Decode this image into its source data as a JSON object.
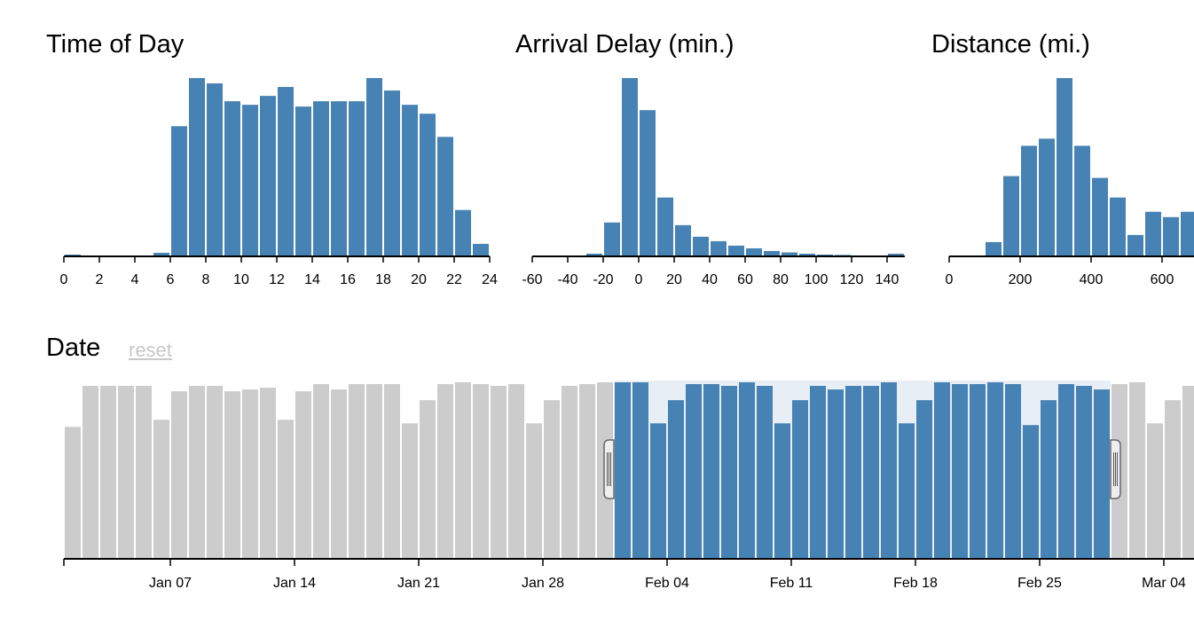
{
  "colors": {
    "bar_selected": "#4682b4",
    "bar_unselected": "#cccccc",
    "brush_fill": "#e8eef6",
    "axis": "#000000",
    "reset": "#c8c8c8"
  },
  "reset_label": "reset",
  "chart_data": [
    {
      "type": "bar",
      "title": "Time of Day",
      "x_start": [
        0,
        1,
        2,
        3,
        4,
        5,
        6,
        7,
        8,
        9,
        10,
        11,
        12,
        13,
        14,
        15,
        16,
        17,
        18,
        19,
        20,
        21,
        22,
        23
      ],
      "bin_width": 1,
      "values": [
        1,
        0,
        0,
        0,
        0,
        2,
        73,
        100,
        97,
        87,
        85,
        90,
        95,
        84,
        87,
        87,
        87,
        100,
        93,
        85,
        80,
        67,
        26,
        7
      ],
      "xlim": [
        0,
        24
      ],
      "ylim": [
        0,
        100
      ],
      "tick_labels": [
        "0",
        "2",
        "4",
        "6",
        "8",
        "10",
        "12",
        "14",
        "16",
        "18",
        "20",
        "22",
        "24"
      ],
      "tick_values": [
        0,
        2,
        4,
        6,
        8,
        10,
        12,
        14,
        16,
        18,
        20,
        22,
        24
      ]
    },
    {
      "type": "bar",
      "title": "Arrival Delay (min.)",
      "x_start": [
        -60,
        -50,
        -40,
        -30,
        -20,
        -10,
        0,
        10,
        20,
        30,
        40,
        50,
        60,
        70,
        80,
        90,
        100,
        110,
        120,
        130,
        140
      ],
      "bin_width": 10,
      "values": [
        0,
        0,
        0,
        1.5,
        19,
        100,
        82,
        33,
        17.5,
        11,
        8.5,
        6,
        4.5,
        3,
        2.2,
        1.5,
        1,
        0.8,
        0.5,
        0.3,
        1.5
      ],
      "xlim": [
        -60,
        150
      ],
      "ylim": [
        0,
        100
      ],
      "tick_labels": [
        "-60",
        "-40",
        "-20",
        "0",
        "20",
        "40",
        "60",
        "80",
        "100",
        "120",
        "140"
      ],
      "tick_values": [
        -60,
        -40,
        -20,
        0,
        20,
        40,
        60,
        80,
        100,
        120,
        140
      ]
    },
    {
      "type": "bar",
      "title": "Distance (mi.)",
      "x_start": [
        0,
        50,
        100,
        150,
        200,
        250,
        300,
        350,
        400,
        450,
        500,
        550,
        600,
        650
      ],
      "bin_width": 50,
      "values": [
        0,
        0,
        8,
        45,
        62,
        66,
        100,
        62,
        44,
        33,
        12,
        25,
        22,
        25
      ],
      "xlim": [
        0,
        690
      ],
      "ylim": [
        0,
        100
      ],
      "tick_labels": [
        "0",
        "200",
        "400",
        "600"
      ],
      "tick_values": [
        0,
        200,
        400,
        600
      ]
    },
    {
      "type": "bar",
      "title": "Date",
      "start_date": "2001-01-01",
      "x": [
        "2001-01-01",
        "2001-01-02",
        "2001-01-03",
        "2001-01-04",
        "2001-01-05",
        "2001-01-06",
        "2001-01-07",
        "2001-01-08",
        "2001-01-09",
        "2001-01-10",
        "2001-01-11",
        "2001-01-12",
        "2001-01-13",
        "2001-01-14",
        "2001-01-15",
        "2001-01-16",
        "2001-01-17",
        "2001-01-18",
        "2001-01-19",
        "2001-01-20",
        "2001-01-21",
        "2001-01-22",
        "2001-01-23",
        "2001-01-24",
        "2001-01-25",
        "2001-01-26",
        "2001-01-27",
        "2001-01-28",
        "2001-01-29",
        "2001-01-30",
        "2001-01-31",
        "2001-02-01",
        "2001-02-02",
        "2001-02-03",
        "2001-02-04",
        "2001-02-05",
        "2001-02-06",
        "2001-02-07",
        "2001-02-08",
        "2001-02-09",
        "2001-02-10",
        "2001-02-11",
        "2001-02-12",
        "2001-02-13",
        "2001-02-14",
        "2001-02-15",
        "2001-02-16",
        "2001-02-17",
        "2001-02-18",
        "2001-02-19",
        "2001-02-20",
        "2001-02-21",
        "2001-02-22",
        "2001-02-23",
        "2001-02-24",
        "2001-02-25",
        "2001-02-26",
        "2001-02-27",
        "2001-02-28",
        "2001-03-01",
        "2001-03-02",
        "2001-03-03",
        "2001-03-04",
        "2001-03-05",
        "2001-03-06"
      ],
      "values": [
        74,
        97,
        97,
        97,
        97,
        78,
        94,
        97,
        97,
        94,
        95,
        96,
        78,
        94,
        98,
        95,
        98,
        98,
        98,
        76,
        89,
        98,
        99,
        98,
        97,
        98,
        76,
        89,
        97,
        98,
        99,
        99,
        99,
        76,
        89,
        98,
        98,
        97,
        99,
        97,
        76,
        89,
        97,
        95,
        97,
        97,
        99,
        76,
        89,
        99,
        98,
        98,
        99,
        98,
        75,
        89,
        98,
        97,
        95,
        98,
        99,
        76,
        89,
        97,
        98
      ],
      "ylim": [
        0,
        100
      ],
      "tick_labels": [
        "Jan 07",
        "Jan 14",
        "Jan 21",
        "Jan 28",
        "Feb 04",
        "Feb 11",
        "Feb 18",
        "Feb 25",
        "Mar 04"
      ],
      "tick_values": [
        "2001-01-07",
        "2001-01-14",
        "2001-01-21",
        "2001-01-28",
        "2001-02-04",
        "2001-02-11",
        "2001-02-18",
        "2001-02-25",
        "2001-03-04"
      ],
      "brush_range": [
        "2001-02-01",
        "2001-03-01"
      ]
    }
  ]
}
